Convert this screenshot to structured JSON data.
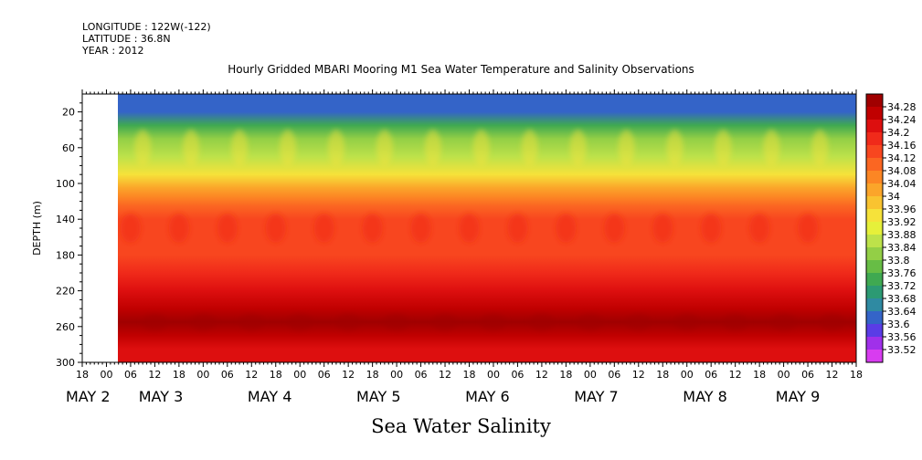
{
  "meta": {
    "longitude": "LONGITUDE : 122W(-122)",
    "latitude": "LATITUDE : 36.8N",
    "year": "YEAR : 2012"
  },
  "title": "Hourly Gridded MBARI Mooring M1 Sea Water Temperature and Salinity Observations",
  "bottom_title": "Sea Water Salinity",
  "chart_data": {
    "type": "heatmap",
    "title": "Hourly Gridded MBARI Mooring M1 Sea Water Temperature and Salinity Observations",
    "variable": "Sea Water Salinity",
    "xlabel": "",
    "ylabel": "DEPTH (m)",
    "ylim": [
      300,
      0
    ],
    "y_ticks": [
      20,
      60,
      100,
      140,
      180,
      220,
      260,
      300
    ],
    "x_range_hours": [
      -6,
      186
    ],
    "data_start_hour": 2,
    "x_tick_hours": [
      -6,
      0,
      6,
      12,
      18,
      24,
      30,
      36,
      42,
      48,
      54,
      60,
      66,
      72,
      78,
      84,
      90,
      96,
      102,
      108,
      114,
      120,
      126,
      132,
      138,
      144,
      150,
      156,
      162,
      168,
      174,
      180,
      186
    ],
    "x_tick_labels": [
      "18",
      "00",
      "06",
      "12",
      "18",
      "00",
      "06",
      "12",
      "18",
      "00",
      "06",
      "12",
      "18",
      "00",
      "06",
      "12",
      "18",
      "00",
      "06",
      "12",
      "18",
      "00",
      "06",
      "12",
      "18",
      "00",
      "06",
      "12",
      "18",
      "00",
      "06",
      "12",
      "18"
    ],
    "day_labels": [
      {
        "hour": -24,
        "label": "MAY  2"
      },
      {
        "hour": 8,
        "label": "MAY  3"
      },
      {
        "hour": 35,
        "label": "MAY  4"
      },
      {
        "hour": 62,
        "label": "MAY  5"
      },
      {
        "hour": 89,
        "label": "MAY  6"
      },
      {
        "hour": 116,
        "label": "MAY  7"
      },
      {
        "hour": 143,
        "label": "MAY  8"
      },
      {
        "hour": 166,
        "label": "MAY  9"
      }
    ],
    "colorbar_levels": [
      "34.28",
      "34.24",
      "34.2",
      "34.16",
      "34.12",
      "34.08",
      "34.04",
      "34",
      "33.96",
      "33.92",
      "33.88",
      "33.84",
      "33.8",
      "33.76",
      "33.72",
      "33.68",
      "33.64",
      "33.6",
      "33.56",
      "33.52"
    ],
    "colorbar_colors": [
      "#a00000",
      "#c00000",
      "#dd0f0f",
      "#f02a1a",
      "#f8461f",
      "#fb6622",
      "#fc8624",
      "#fba52a",
      "#f9c330",
      "#f6e23a",
      "#e6f03a",
      "#bde24a",
      "#93cf46",
      "#67bd45",
      "#3fa951",
      "#2c9a73",
      "#2f8aa2",
      "#3464c8",
      "#5a3ce6",
      "#a030ea",
      "#d83cf0"
    ],
    "depth_profile": [
      {
        "depth": 10,
        "salinity": 33.64
      },
      {
        "depth": 20,
        "salinity": 33.66
      },
      {
        "depth": 35,
        "salinity": 33.76
      },
      {
        "depth": 50,
        "salinity": 33.84
      },
      {
        "depth": 70,
        "salinity": 33.88
      },
      {
        "depth": 90,
        "salinity": 33.94
      },
      {
        "depth": 105,
        "salinity": 34.0
      },
      {
        "depth": 115,
        "salinity": 34.03
      },
      {
        "depth": 125,
        "salinity": 34.07
      },
      {
        "depth": 140,
        "salinity": 34.12
      },
      {
        "depth": 160,
        "salinity": 34.13
      },
      {
        "depth": 180,
        "salinity": 34.13
      },
      {
        "depth": 200,
        "salinity": 34.15
      },
      {
        "depth": 220,
        "salinity": 34.19
      },
      {
        "depth": 240,
        "salinity": 34.23
      },
      {
        "depth": 255,
        "salinity": 34.26
      },
      {
        "depth": 270,
        "salinity": 34.22
      },
      {
        "depth": 285,
        "salinity": 34.2
      },
      {
        "depth": 300,
        "salinity": 34.18
      }
    ]
  }
}
